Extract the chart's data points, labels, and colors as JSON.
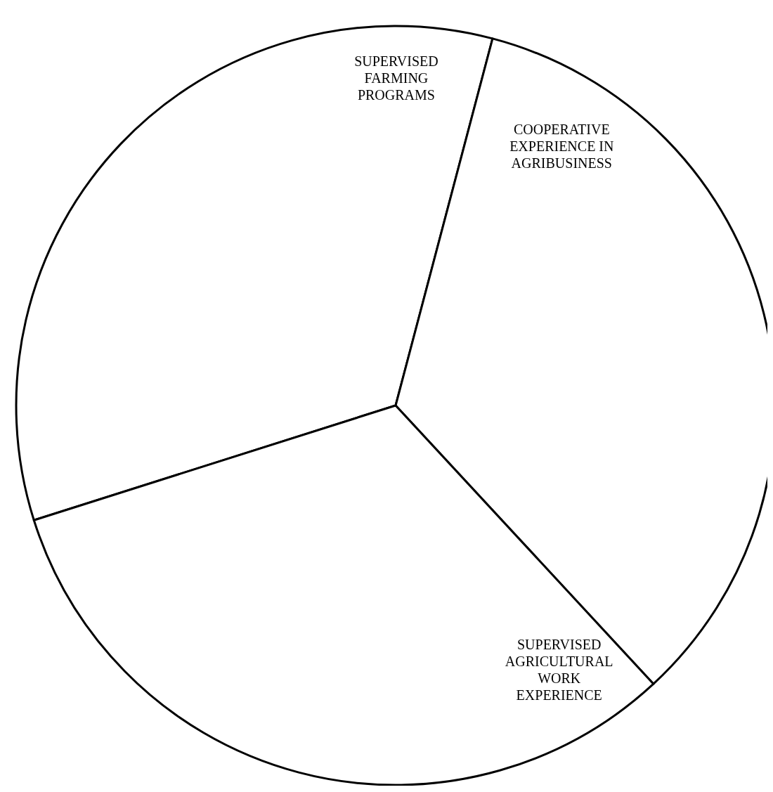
{
  "chart_data": {
    "type": "pie",
    "categories": [
      "SUPERVISED FARMING PROGRAMS",
      "COOPERATIVE EXPERIENCE IN AGRIBUSINESS",
      "SUPERVISED AGRICULTURAL WORK EXPERIENCE"
    ],
    "values": [
      34,
      34,
      32
    ],
    "colors": [
      "#ffffff",
      "#ffffff",
      "#ffffff"
    ]
  }
}
